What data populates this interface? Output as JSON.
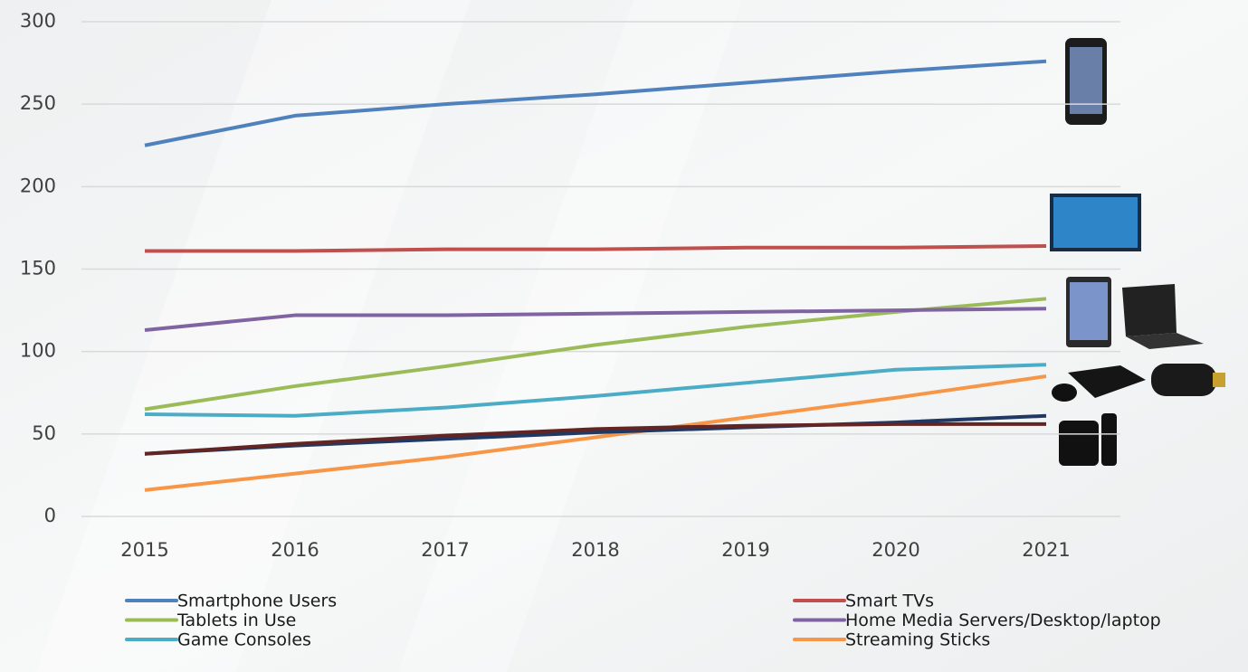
{
  "chart_data": {
    "type": "line",
    "categories": [
      "2015",
      "2016",
      "2017",
      "2018",
      "2019",
      "2020",
      "2021"
    ],
    "ylim": [
      0,
      300
    ],
    "yticks": [
      0,
      50,
      100,
      150,
      200,
      250,
      300
    ],
    "grid": true,
    "series": [
      {
        "name": "Smartphone Users",
        "color": "#4f81bd",
        "values": [
          225,
          243,
          250,
          256,
          263,
          270,
          276
        ]
      },
      {
        "name": "Smart TVs",
        "color": "#c0504d",
        "values": [
          161,
          161,
          162,
          162,
          163,
          163,
          164
        ]
      },
      {
        "name": "Tablets in Use",
        "color": "#9bbb59",
        "values": [
          65,
          79,
          91,
          104,
          115,
          124,
          132
        ]
      },
      {
        "name": "Home Media Servers/Desktop/laptop",
        "color": "#8064a2",
        "values": [
          113,
          122,
          122,
          123,
          124,
          125,
          126
        ]
      },
      {
        "name": "Game Consoles",
        "color": "#4bacc6",
        "values": [
          62,
          61,
          66,
          73,
          81,
          89,
          92
        ]
      },
      {
        "name": "Streaming Sticks",
        "color": "#f79646",
        "values": [
          16,
          26,
          36,
          48,
          60,
          72,
          85
        ]
      },
      {
        "color": "#1f3864",
        "values": [
          38,
          43,
          47,
          51,
          54,
          57,
          61
        ]
      },
      {
        "color": "#632523",
        "values": [
          38,
          44,
          49,
          53,
          55,
          56,
          56
        ]
      }
    ]
  }
}
